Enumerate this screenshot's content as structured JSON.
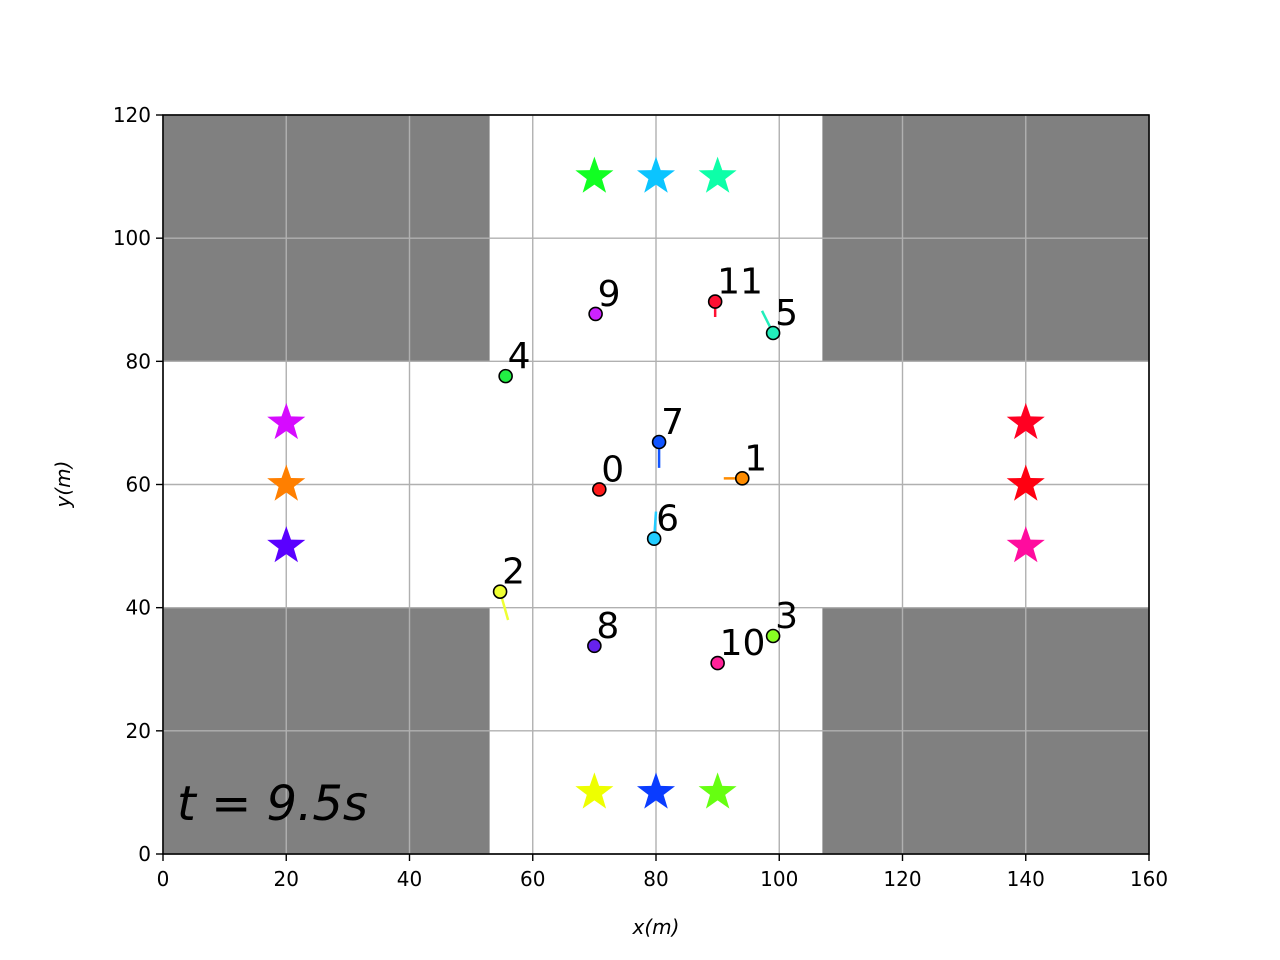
{
  "chart_data": {
    "type": "scatter",
    "xlabel": "x(m)",
    "ylabel": "y(m)",
    "xlim": [
      0,
      160
    ],
    "ylim": [
      0,
      120
    ],
    "grid": true,
    "x_ticks": [
      "0",
      "20",
      "40",
      "60",
      "80",
      "100",
      "120",
      "140",
      "160"
    ],
    "y_ticks": [
      "0",
      "20",
      "40",
      "60",
      "80",
      "100",
      "120"
    ],
    "time_label": "t = 9.5s",
    "blocked_regions": [
      {
        "x": [
          0,
          53
        ],
        "y": [
          80,
          120
        ],
        "color": "#808080"
      },
      {
        "x": [
          107,
          160
        ],
        "y": [
          80,
          120
        ],
        "color": "#808080"
      },
      {
        "x": [
          0,
          53
        ],
        "y": [
          0,
          40
        ],
        "color": "#808080"
      },
      {
        "x": [
          107,
          160
        ],
        "y": [
          0,
          40
        ],
        "color": "#808080"
      }
    ],
    "goals": [
      {
        "x": 70,
        "y": 110,
        "color": "#11ff22"
      },
      {
        "x": 80,
        "y": 110,
        "color": "#0bc4ff"
      },
      {
        "x": 90,
        "y": 110,
        "color": "#0dffa8"
      },
      {
        "x": 20,
        "y": 70,
        "color": "#d60bff"
      },
      {
        "x": 20,
        "y": 60,
        "color": "#ff7f00"
      },
      {
        "x": 20,
        "y": 50,
        "color": "#5a00ff"
      },
      {
        "x": 140,
        "y": 70,
        "color": "#ff0022"
      },
      {
        "x": 140,
        "y": 60,
        "color": "#ff0011"
      },
      {
        "x": 140,
        "y": 50,
        "color": "#ff0c9e"
      },
      {
        "x": 70,
        "y": 10,
        "color": "#eeff00"
      },
      {
        "x": 80,
        "y": 10,
        "color": "#0a3cff"
      },
      {
        "x": 90,
        "y": 10,
        "color": "#66ff11"
      }
    ],
    "agents": [
      {
        "id": "0",
        "x": 70.8,
        "y": 59.2,
        "color": "#ff1a1a",
        "heading": [
          0,
          0
        ]
      },
      {
        "id": "1",
        "x": 94.0,
        "y": 61.0,
        "color": "#ff8c00",
        "heading": [
          -3,
          0
        ]
      },
      {
        "id": "2",
        "x": 54.7,
        "y": 42.6,
        "color": "#eeff33",
        "heading": [
          1.3,
          -4.6
        ]
      },
      {
        "id": "3",
        "x": 99.0,
        "y": 35.4,
        "color": "#88ff22",
        "heading": [
          0,
          0
        ]
      },
      {
        "id": "4",
        "x": 55.6,
        "y": 77.6,
        "color": "#22ee44",
        "heading": [
          0,
          0
        ]
      },
      {
        "id": "5",
        "x": 99.0,
        "y": 84.6,
        "color": "#22eebb",
        "heading": [
          -1.8,
          3.6
        ]
      },
      {
        "id": "6",
        "x": 79.7,
        "y": 51.2,
        "color": "#22ccff",
        "heading": [
          0.3,
          4.4
        ]
      },
      {
        "id": "7",
        "x": 80.5,
        "y": 66.9,
        "color": "#1155ff",
        "heading": [
          0,
          -4.2
        ]
      },
      {
        "id": "8",
        "x": 70.0,
        "y": 33.8,
        "color": "#6622ee",
        "heading": [
          0,
          0
        ]
      },
      {
        "id": "9",
        "x": 70.2,
        "y": 87.7,
        "color": "#cc22ff",
        "heading": [
          0,
          0
        ]
      },
      {
        "id": "10",
        "x": 90.0,
        "y": 31.0,
        "color": "#ff2299",
        "heading": [
          0,
          0
        ]
      },
      {
        "id": "11",
        "x": 89.6,
        "y": 89.7,
        "color": "#ff1133",
        "heading": [
          0,
          -2.5
        ]
      }
    ]
  }
}
